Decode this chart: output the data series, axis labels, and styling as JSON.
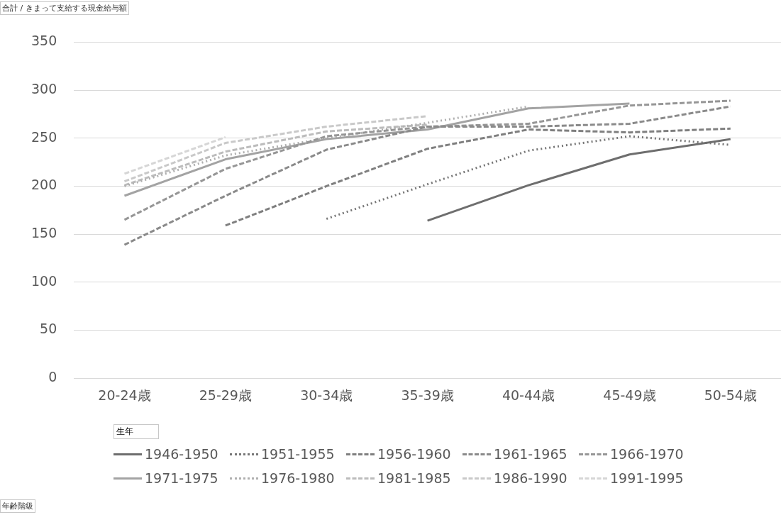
{
  "chart_data": {
    "type": "line",
    "ylabel": "合計 / きまって支給する現金給与額",
    "annotations": [
      "年齢階級"
    ],
    "legend_title": "生年",
    "categories": [
      "20-24歳",
      "25-29歳",
      "30-34歳",
      "35-39歳",
      "40-44歳",
      "45-49歳",
      "50-54歳"
    ],
    "series": [
      {
        "name": "1946-1950",
        "color": "#6e6e6e",
        "line_style": "solid",
        "values": [
          null,
          null,
          null,
          164,
          201,
          233,
          249
        ]
      },
      {
        "name": "1951-1955",
        "color": "#767676",
        "line_style": "dotted",
        "values": [
          null,
          null,
          166,
          202,
          237,
          252,
          243
        ]
      },
      {
        "name": "1956-1960",
        "color": "#7f7f7f",
        "line_style": "dashed",
        "values": [
          null,
          159,
          200,
          239,
          259,
          256,
          260
        ]
      },
      {
        "name": "1961-1965",
        "color": "#8a8a8a",
        "line_style": "dashed",
        "values": [
          139,
          190,
          238,
          262,
          262,
          265,
          283
        ]
      },
      {
        "name": "1966-1970",
        "color": "#969696",
        "line_style": "dashed",
        "values": [
          165,
          218,
          252,
          262,
          265,
          284,
          289
        ]
      },
      {
        "name": "1971-1975",
        "color": "#a3a3a3",
        "line_style": "solid",
        "values": [
          190,
          228,
          249,
          259,
          281,
          286,
          null
        ]
      },
      {
        "name": "1976-1980",
        "color": "#afafaf",
        "line_style": "dotted",
        "values": [
          200,
          232,
          250,
          266,
          283,
          null,
          null
        ]
      },
      {
        "name": "1981-1985",
        "color": "#bcbcbc",
        "line_style": "dashed",
        "values": [
          201,
          236,
          257,
          264,
          null,
          null,
          null
        ]
      },
      {
        "name": "1986-1990",
        "color": "#c9c9c9",
        "line_style": "dashed",
        "values": [
          205,
          245,
          262,
          273,
          null,
          null,
          null
        ]
      },
      {
        "name": "1991-1995",
        "color": "#d6d6d6",
        "line_style": "dashed",
        "values": [
          213,
          251,
          null,
          null,
          null,
          null,
          null
        ]
      }
    ],
    "ylim": [
      0,
      350
    ],
    "yticks": [
      0,
      50,
      100,
      150,
      200,
      250,
      300,
      350
    ],
    "grid": "y",
    "legend": "bottom",
    "marker": "none"
  }
}
